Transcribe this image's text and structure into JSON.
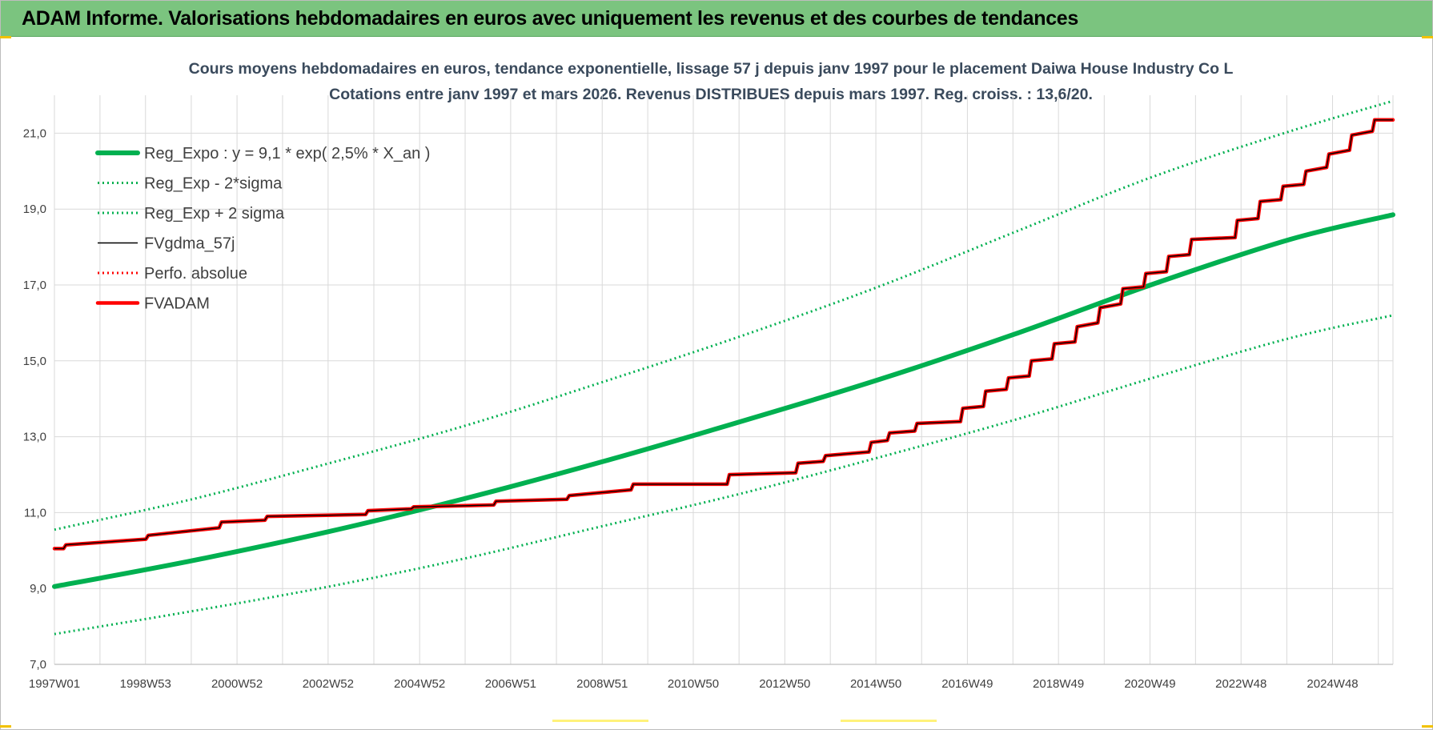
{
  "header": {
    "title": "ADAM Informe. Valorisations hebdomadaires en euros avec uniquement les revenus et des courbes de tendances"
  },
  "chart_data": {
    "type": "line",
    "title_line1": "Cours moyens hebdomadaires en euros, tendance exponentielle, lissage 57 j depuis janv 1997 pour le placement Daiwa House Industry Co L",
    "title_line2": "Cotations entre janv 1997 et mars 2026. Revenus DISTRIBUES depuis mars 1997. Reg. croiss. : 13,6/20.",
    "xlabel": "",
    "ylabel": "",
    "x_range": [
      1997.0,
      2026.25
    ],
    "ylim": [
      7.0,
      22.0
    ],
    "y_ticks": [
      7.0,
      9.0,
      11.0,
      13.0,
      15.0,
      17.0,
      19.0,
      21.0
    ],
    "y_tick_labels": [
      "7,0",
      "9,0",
      "11,0",
      "13,0",
      "15,0",
      "17,0",
      "19,0",
      "21,0"
    ],
    "x_ticks": [
      1997.0,
      1998.99,
      2000.99,
      2002.98,
      2004.98,
      2006.97,
      2008.97,
      2010.96,
      2012.96,
      2014.95,
      2016.95,
      2018.94,
      2020.94,
      2022.93,
      2024.93
    ],
    "x_tick_labels": [
      "1997W01",
      "1998W53",
      "2000W52",
      "2002W52",
      "2004W52",
      "2006W51",
      "2008W51",
      "2010W50",
      "2012W50",
      "2014W50",
      "2016W49",
      "2018W49",
      "2020W49",
      "2022W48",
      "2024W48"
    ],
    "grid": true,
    "legend_position": "top-left",
    "colors": {
      "green": "#00b050",
      "red": "#ff0000",
      "black": "#000000",
      "grid": "#d9d9d9",
      "axis": "#bfbfbf"
    },
    "series": [
      {
        "name": "Reg_Expo : y = 9,1 * exp( 2,5% *  X_an )",
        "style": "solid-thick",
        "color": "#00b050",
        "x": [
          1997.0,
          2000.0,
          2003.0,
          2006.0,
          2009.0,
          2012.0,
          2015.0,
          2018.0,
          2021.0,
          2024.0,
          2026.25
        ],
        "y": [
          9.05,
          9.73,
          10.5,
          11.38,
          12.35,
          13.4,
          14.5,
          15.71,
          17.02,
          18.2,
          18.85
        ]
      },
      {
        "name": "Reg_Exp - 2*sigma",
        "style": "dotted",
        "color": "#00b050",
        "x": [
          1997.0,
          2000.0,
          2003.0,
          2006.0,
          2009.0,
          2012.0,
          2015.0,
          2018.0,
          2021.0,
          2024.0,
          2026.25
        ],
        "y": [
          7.8,
          8.4,
          9.05,
          9.8,
          10.65,
          11.5,
          12.45,
          13.45,
          14.55,
          15.6,
          16.2
        ]
      },
      {
        "name": "Reg_Exp + 2 sigma",
        "style": "dotted",
        "color": "#00b050",
        "x": [
          1997.0,
          2000.0,
          2003.0,
          2006.0,
          2009.0,
          2012.0,
          2015.0,
          2018.0,
          2021.0,
          2024.0,
          2026.25
        ],
        "y": [
          10.55,
          11.35,
          12.3,
          13.3,
          14.45,
          15.65,
          16.95,
          18.4,
          19.85,
          21.05,
          21.85
        ]
      },
      {
        "name": "FVgdma_57j",
        "style": "solid-thin",
        "color": "#000000",
        "x": [
          1997.0,
          1997.2,
          1997.25,
          1999.0,
          1999.05,
          2000.6,
          2000.65,
          2001.6,
          2001.65,
          2003.8,
          2003.85,
          2004.8,
          2004.85,
          2006.6,
          2006.65,
          2008.2,
          2008.25,
          2009.6,
          2009.65,
          2011.7,
          2011.75,
          2013.2,
          2013.25,
          2013.8,
          2013.85,
          2014.8,
          2014.85,
          2015.2,
          2015.25,
          2015.8,
          2015.85,
          2016.8,
          2016.85,
          2017.3,
          2017.35,
          2017.8,
          2017.85,
          2018.3,
          2018.35,
          2018.8,
          2018.85,
          2019.3,
          2019.35,
          2019.8,
          2019.85,
          2020.3,
          2020.35,
          2020.8,
          2020.85,
          2021.3,
          2021.35,
          2021.8,
          2021.85,
          2022.8,
          2022.85,
          2023.3,
          2023.35,
          2023.8,
          2023.85,
          2024.3,
          2024.35,
          2024.8,
          2024.85,
          2025.3,
          2025.35,
          2025.8,
          2025.85,
          2026.25
        ],
        "y": [
          10.05,
          10.05,
          10.15,
          10.3,
          10.4,
          10.6,
          10.75,
          10.8,
          10.9,
          10.95,
          11.05,
          11.1,
          11.15,
          11.2,
          11.3,
          11.35,
          11.45,
          11.6,
          11.75,
          11.75,
          12.0,
          12.05,
          12.3,
          12.35,
          12.5,
          12.6,
          12.85,
          12.9,
          13.1,
          13.15,
          13.35,
          13.4,
          13.75,
          13.8,
          14.2,
          14.25,
          14.55,
          14.6,
          15.0,
          15.05,
          15.45,
          15.5,
          15.9,
          16.0,
          16.4,
          16.5,
          16.9,
          16.95,
          17.3,
          17.35,
          17.75,
          17.8,
          18.2,
          18.25,
          18.7,
          18.75,
          19.2,
          19.25,
          19.6,
          19.65,
          20.0,
          20.1,
          20.45,
          20.55,
          20.95,
          21.05,
          21.35,
          21.35
        ]
      },
      {
        "name": "Perfo. absolue",
        "style": "dotted",
        "color": "#ff0000",
        "x": [],
        "y": []
      },
      {
        "name": "FVADAM",
        "style": "solid-thick",
        "color": "#ff0000",
        "x": [
          1997.0,
          1997.2,
          1997.25,
          1999.0,
          1999.05,
          2000.6,
          2000.65,
          2001.6,
          2001.65,
          2003.8,
          2003.85,
          2004.8,
          2004.85,
          2006.6,
          2006.65,
          2008.2,
          2008.25,
          2009.6,
          2009.65,
          2011.7,
          2011.75,
          2013.2,
          2013.25,
          2013.8,
          2013.85,
          2014.8,
          2014.85,
          2015.2,
          2015.25,
          2015.8,
          2015.85,
          2016.8,
          2016.85,
          2017.3,
          2017.35,
          2017.8,
          2017.85,
          2018.3,
          2018.35,
          2018.8,
          2018.85,
          2019.3,
          2019.35,
          2019.8,
          2019.85,
          2020.3,
          2020.35,
          2020.8,
          2020.85,
          2021.3,
          2021.35,
          2021.8,
          2021.85,
          2022.8,
          2022.85,
          2023.3,
          2023.35,
          2023.8,
          2023.85,
          2024.3,
          2024.35,
          2024.8,
          2024.85,
          2025.3,
          2025.35,
          2025.8,
          2025.85,
          2026.25
        ],
        "y": [
          10.05,
          10.05,
          10.15,
          10.3,
          10.4,
          10.6,
          10.75,
          10.8,
          10.9,
          10.95,
          11.05,
          11.1,
          11.15,
          11.2,
          11.3,
          11.35,
          11.45,
          11.6,
          11.75,
          11.75,
          12.0,
          12.05,
          12.3,
          12.35,
          12.5,
          12.6,
          12.85,
          12.9,
          13.1,
          13.15,
          13.35,
          13.4,
          13.75,
          13.8,
          14.2,
          14.25,
          14.55,
          14.6,
          15.0,
          15.05,
          15.45,
          15.5,
          15.9,
          16.0,
          16.4,
          16.5,
          16.9,
          16.95,
          17.3,
          17.35,
          17.75,
          17.8,
          18.2,
          18.25,
          18.7,
          18.75,
          19.2,
          19.25,
          19.6,
          19.65,
          20.0,
          20.1,
          20.45,
          20.55,
          20.95,
          21.05,
          21.35,
          21.35
        ]
      }
    ]
  }
}
